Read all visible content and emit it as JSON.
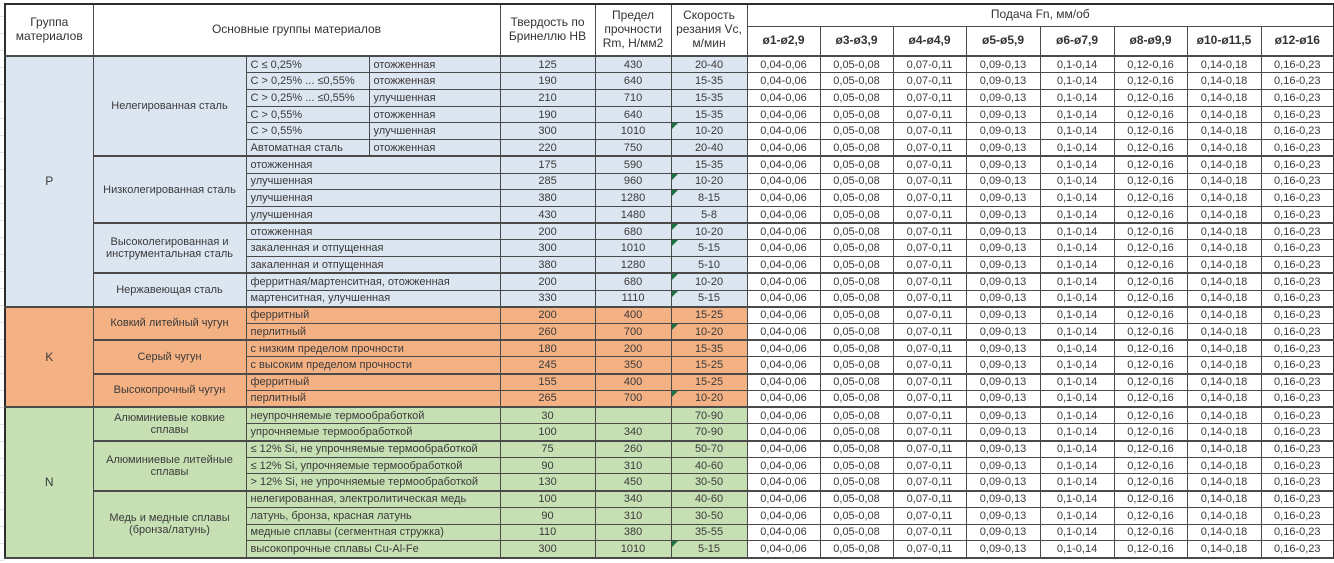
{
  "header": {
    "col_group": "Группа материалов",
    "col_main": "Основные группы материалов",
    "col_hb": "Твердость по Бринеллю HB",
    "col_rm": "Предел прочности Rm, Н/мм2",
    "col_vc": "Скорость резания Vc, м/мин",
    "col_feed": "Подача Fn, мм/об",
    "diameters": [
      "ø1-ø2,9",
      "ø3-ø3,9",
      "ø4-ø4,9",
      "ø5-ø5,9",
      "ø6-ø7,9",
      "ø8-ø9,9",
      "ø10-ø11,5",
      "ø12-ø16"
    ]
  },
  "feed_values": [
    "0,04-0,06",
    "0,05-0,08",
    "0,07-0,11",
    "0,09-0,13",
    "0,1-0,14",
    "0,12-0,16",
    "0,14-0,18",
    "0,16-0,23"
  ],
  "marker_color": "#1e7145",
  "groups": [
    {
      "code": "P",
      "color": "#dce6f1",
      "subgroups": [
        {
          "name": "Нелегированная сталь",
          "rows": [
            {
              "d1": "C ≤ 0,25%",
              "d2": "отожженная",
              "hb": "125",
              "rm": "430",
              "vc": "20-40",
              "m": false
            },
            {
              "d1": "C > 0,25% ... ≤0,55%",
              "d2": "отожженная",
              "hb": "190",
              "rm": "640",
              "vc": "15-35",
              "m": false
            },
            {
              "d1": "C > 0,25% ... ≤0,55%",
              "d2": "улучшенная",
              "hb": "210",
              "rm": "710",
              "vc": "15-35",
              "m": false
            },
            {
              "d1": "C > 0,55%",
              "d2": "отожженная",
              "hb": "190",
              "rm": "640",
              "vc": "15-35",
              "m": false
            },
            {
              "d1": "C > 0,55%",
              "d2": "улучшенная",
              "hb": "300",
              "rm": "1010",
              "vc": "10-20",
              "m": true
            },
            {
              "d1": "Автоматная сталь",
              "d2": "отожженная",
              "hb": "220",
              "rm": "750",
              "vc": "20-40",
              "m": false
            }
          ]
        },
        {
          "name": "Низколегированная сталь",
          "rows": [
            {
              "d1": "отожженная",
              "d2": null,
              "hb": "175",
              "rm": "590",
              "vc": "15-35",
              "m": false
            },
            {
              "d1": "улучшенная",
              "d2": null,
              "hb": "285",
              "rm": "960",
              "vc": "10-20",
              "m": true
            },
            {
              "d1": "улучшенная",
              "d2": null,
              "hb": "380",
              "rm": "1280",
              "vc": "8-15",
              "m": true
            },
            {
              "d1": "улучшенная",
              "d2": null,
              "hb": "430",
              "rm": "1480",
              "vc": "5-8",
              "m": false
            }
          ]
        },
        {
          "name": "Высоколегированная и инструментальная сталь",
          "rows": [
            {
              "d1": "отожженная",
              "d2": null,
              "hb": "200",
              "rm": "680",
              "vc": "10-20",
              "m": true
            },
            {
              "d1": "закаленная и отпущенная",
              "d2": null,
              "hb": "300",
              "rm": "1010",
              "vc": "5-15",
              "m": true
            },
            {
              "d1": "закаленная и отпущенная",
              "d2": null,
              "hb": "380",
              "rm": "1280",
              "vc": "5-10",
              "m": false
            }
          ]
        },
        {
          "name": "Нержавеющая сталь",
          "rows": [
            {
              "d1": "ферритная/мартенситная, отожженная",
              "d2": null,
              "hb": "200",
              "rm": "680",
              "vc": "10-20",
              "m": true
            },
            {
              "d1": "мартенситная, улучшенная",
              "d2": null,
              "hb": "330",
              "rm": "1110",
              "vc": "5-15",
              "m": true
            }
          ]
        }
      ]
    },
    {
      "code": "K",
      "color": "#f4b183",
      "subgroups": [
        {
          "name": "Ковкий литейный чугун",
          "rows": [
            {
              "d1": "ферритный",
              "d2": null,
              "hb": "200",
              "rm": "400",
              "vc": "15-25",
              "m": false
            },
            {
              "d1": "перлитный",
              "d2": null,
              "hb": "260",
              "rm": "700",
              "vc": "10-20",
              "m": true
            }
          ]
        },
        {
          "name": "Серый чугун",
          "rows": [
            {
              "d1": "с низким пределом прочности",
              "d2": null,
              "hb": "180",
              "rm": "200",
              "vc": "15-35",
              "m": false
            },
            {
              "d1": "с высоким пределом прочности",
              "d2": null,
              "hb": "245",
              "rm": "350",
              "vc": "15-25",
              "m": false
            }
          ]
        },
        {
          "name": "Высокопрочный чугун",
          "rows": [
            {
              "d1": "ферритный",
              "d2": null,
              "hb": "155",
              "rm": "400",
              "vc": "15-25",
              "m": false
            },
            {
              "d1": "перлитный",
              "d2": null,
              "hb": "265",
              "rm": "700",
              "vc": "10-20",
              "m": true
            }
          ]
        }
      ]
    },
    {
      "code": "N",
      "color": "#c6e0b4",
      "subgroups": [
        {
          "name": "Алюминиевые ковкие сплавы",
          "rows": [
            {
              "d1": "неупрочняемые термообработкой",
              "d2": null,
              "hb": "30",
              "rm": "",
              "vc": "70-90",
              "m": false
            },
            {
              "d1": "упрочняемые термообработкой",
              "d2": null,
              "hb": "100",
              "rm": "340",
              "vc": "70-90",
              "m": false
            }
          ]
        },
        {
          "name": "Алюминиевые литейные сплавы",
          "rows": [
            {
              "d1": "≤ 12% Si, не упрочняемые термообработкой",
              "d2": null,
              "hb": "75",
              "rm": "260",
              "vc": "50-70",
              "m": false
            },
            {
              "d1": "≤ 12% Si, упрочняемые термообработкой",
              "d2": null,
              "hb": "90",
              "rm": "310",
              "vc": "40-60",
              "m": false
            },
            {
              "d1": "> 12% Si, не упрочняемые термообработкой",
              "d2": null,
              "hb": "130",
              "rm": "450",
              "vc": "30-50",
              "m": false
            }
          ]
        },
        {
          "name": "Медь и медные сплавы (бронза/латунь)",
          "rows": [
            {
              "d1": "нелегированная, электролитическая медь",
              "d2": null,
              "hb": "100",
              "rm": "340",
              "vc": "40-60",
              "m": false
            },
            {
              "d1": "латунь, бронза, красная латунь",
              "d2": null,
              "hb": "90",
              "rm": "310",
              "vc": "30-50",
              "m": false
            },
            {
              "d1": "медные сплавы (сегментная стружка)",
              "d2": null,
              "hb": "110",
              "rm": "380",
              "vc": "35-55",
              "m": false
            },
            {
              "d1": "высокопрочные сплавы Cu-Al-Fe",
              "d2": null,
              "hb": "300",
              "rm": "1010",
              "vc": "5-15",
              "m": true
            }
          ]
        }
      ]
    }
  ]
}
